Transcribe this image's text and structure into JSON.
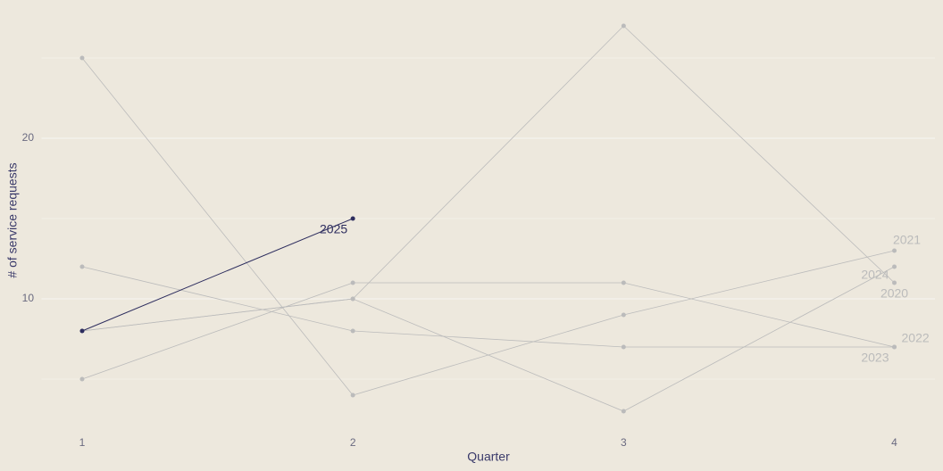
{
  "chart_data": {
    "type": "line",
    "x_label": "Quarter",
    "y_label": "# of service requests",
    "x": [
      1,
      2,
      3,
      4
    ],
    "xlim": [
      0.85,
      4.15
    ],
    "xticks": [
      1,
      2,
      3,
      4
    ],
    "ylim": [
      2,
      28
    ],
    "yticks": [
      10,
      20
    ],
    "y_minor_grid": [
      5,
      15,
      25
    ],
    "grid": true,
    "series": [
      {
        "name": "2021",
        "color": "#bbbbbb",
        "values": [
          25,
          4,
          9,
          13
        ]
      },
      {
        "name": "2023",
        "color": "#bbbbbb",
        "values": [
          12,
          8,
          7,
          7
        ]
      },
      {
        "name": "2024",
        "color": "#bbbbbb",
        "values": [
          8,
          10,
          3,
          12
        ]
      },
      {
        "name": "2022",
        "color": "#bbbbbb",
        "values": [
          5,
          11,
          11,
          7
        ]
      },
      {
        "name": "2020",
        "color": "#bbbbbb",
        "values": [
          8,
          10,
          27,
          11
        ]
      },
      {
        "name": "2025",
        "color": "#2d2d5e",
        "values": [
          8,
          15,
          null,
          null
        ]
      }
    ]
  }
}
